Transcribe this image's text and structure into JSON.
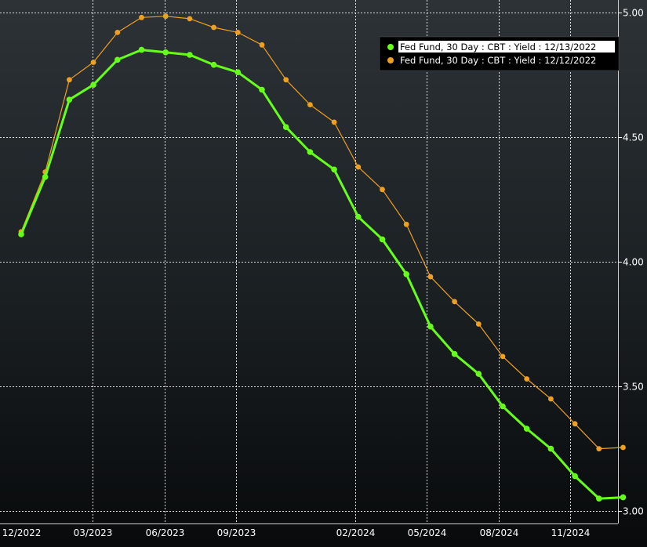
{
  "chart_data": {
    "type": "line",
    "x_tick_labels": [
      "12/2022",
      "03/2023",
      "06/2023",
      "09/2023",
      "02/2024",
      "05/2024",
      "08/2024",
      "11/2024"
    ],
    "y_ticks": [
      3.0,
      3.5,
      4.0,
      4.5,
      5.0
    ],
    "y_tick_labels": [
      "3.00",
      "3.50",
      "4.00",
      "4.50",
      "5.00"
    ],
    "ylim": [
      2.95,
      5.05
    ],
    "grid": true,
    "legend_position": "top-right",
    "series": [
      {
        "name": "Fed Fund, 30 Day : CBT : Yield : 12/13/2022",
        "color": "#66ff1a",
        "values": [
          4.11,
          4.34,
          4.65,
          4.71,
          4.81,
          4.85,
          4.84,
          4.83,
          4.79,
          4.76,
          4.69,
          4.54,
          4.44,
          4.37,
          4.18,
          4.09,
          3.95,
          3.74,
          3.63,
          3.55,
          3.42,
          3.33,
          3.25,
          3.14,
          3.05,
          3.055
        ]
      },
      {
        "name": "Fed Fund, 30 Day : CBT : Yield : 12/12/2022",
        "color": "#f0a020",
        "values": [
          4.12,
          4.36,
          4.73,
          4.8,
          4.92,
          4.98,
          4.985,
          4.975,
          4.94,
          4.92,
          4.87,
          4.73,
          4.63,
          4.56,
          4.38,
          4.29,
          4.15,
          3.94,
          3.84,
          3.75,
          3.62,
          3.53,
          3.45,
          3.35,
          3.25,
          3.255
        ]
      }
    ]
  }
}
